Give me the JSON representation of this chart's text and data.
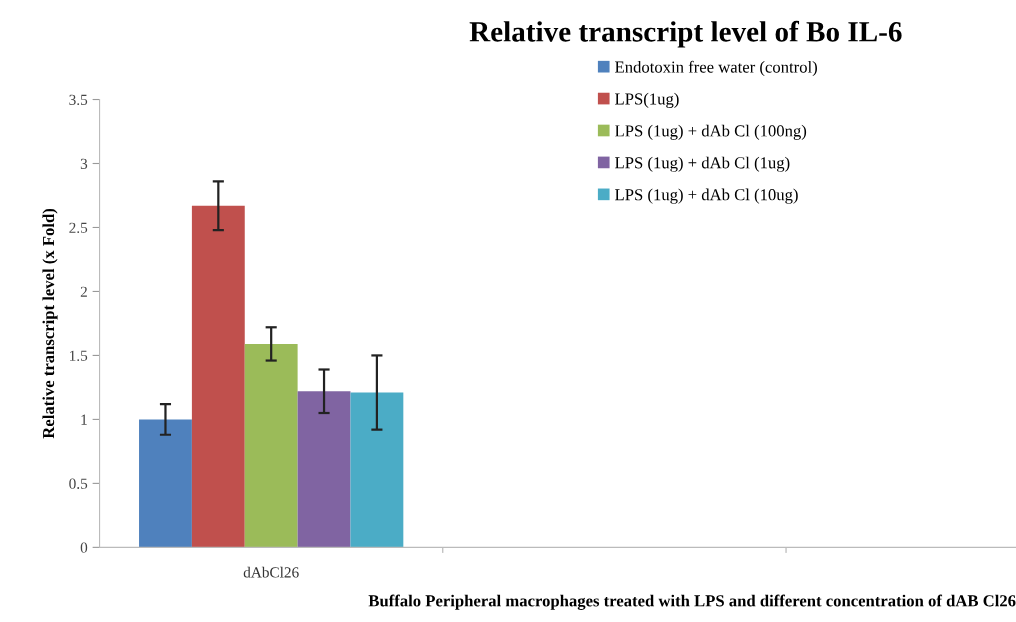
{
  "chart_data": {
    "type": "bar",
    "title": "Relative transcript level of Bo IL-6",
    "xlabel": "Buffalo Peripheral macrophages treated with LPS and different concentration of dAB Cl26",
    "ylabel": "Relative transcript level (x Fold)",
    "categories": [
      "dAbCl26",
      null,
      null
    ],
    "series": [
      {
        "name": "Endotoxin free water (control)",
        "color": "#4f81bd",
        "values": [
          1.0,
          null,
          null
        ],
        "errors": [
          0.12,
          null,
          null
        ]
      },
      {
        "name": "LPS(1ug)",
        "color": "#c0504d",
        "values": [
          2.67,
          null,
          null
        ],
        "errors": [
          0.19,
          null,
          null
        ]
      },
      {
        "name": "LPS (1ug) + dAb Cl (100ng)",
        "color": "#9bbb59",
        "values": [
          1.59,
          null,
          null
        ],
        "errors": [
          0.13,
          null,
          null
        ]
      },
      {
        "name": "LPS (1ug) + dAb Cl (1ug)",
        "color": "#8064a2",
        "values": [
          1.22,
          null,
          null
        ],
        "errors": [
          0.17,
          null,
          null
        ]
      },
      {
        "name": "LPS (1ug) + dAb Cl (10ug)",
        "color": "#4bacc6",
        "values": [
          1.21,
          null,
          null
        ],
        "errors": [
          0.29,
          null,
          null
        ]
      }
    ],
    "ylim": [
      0,
      3.5
    ],
    "yticks": [
      0,
      0.5,
      1,
      1.5,
      2,
      2.5,
      3,
      3.5
    ],
    "grid": false,
    "legend": "top right"
  }
}
